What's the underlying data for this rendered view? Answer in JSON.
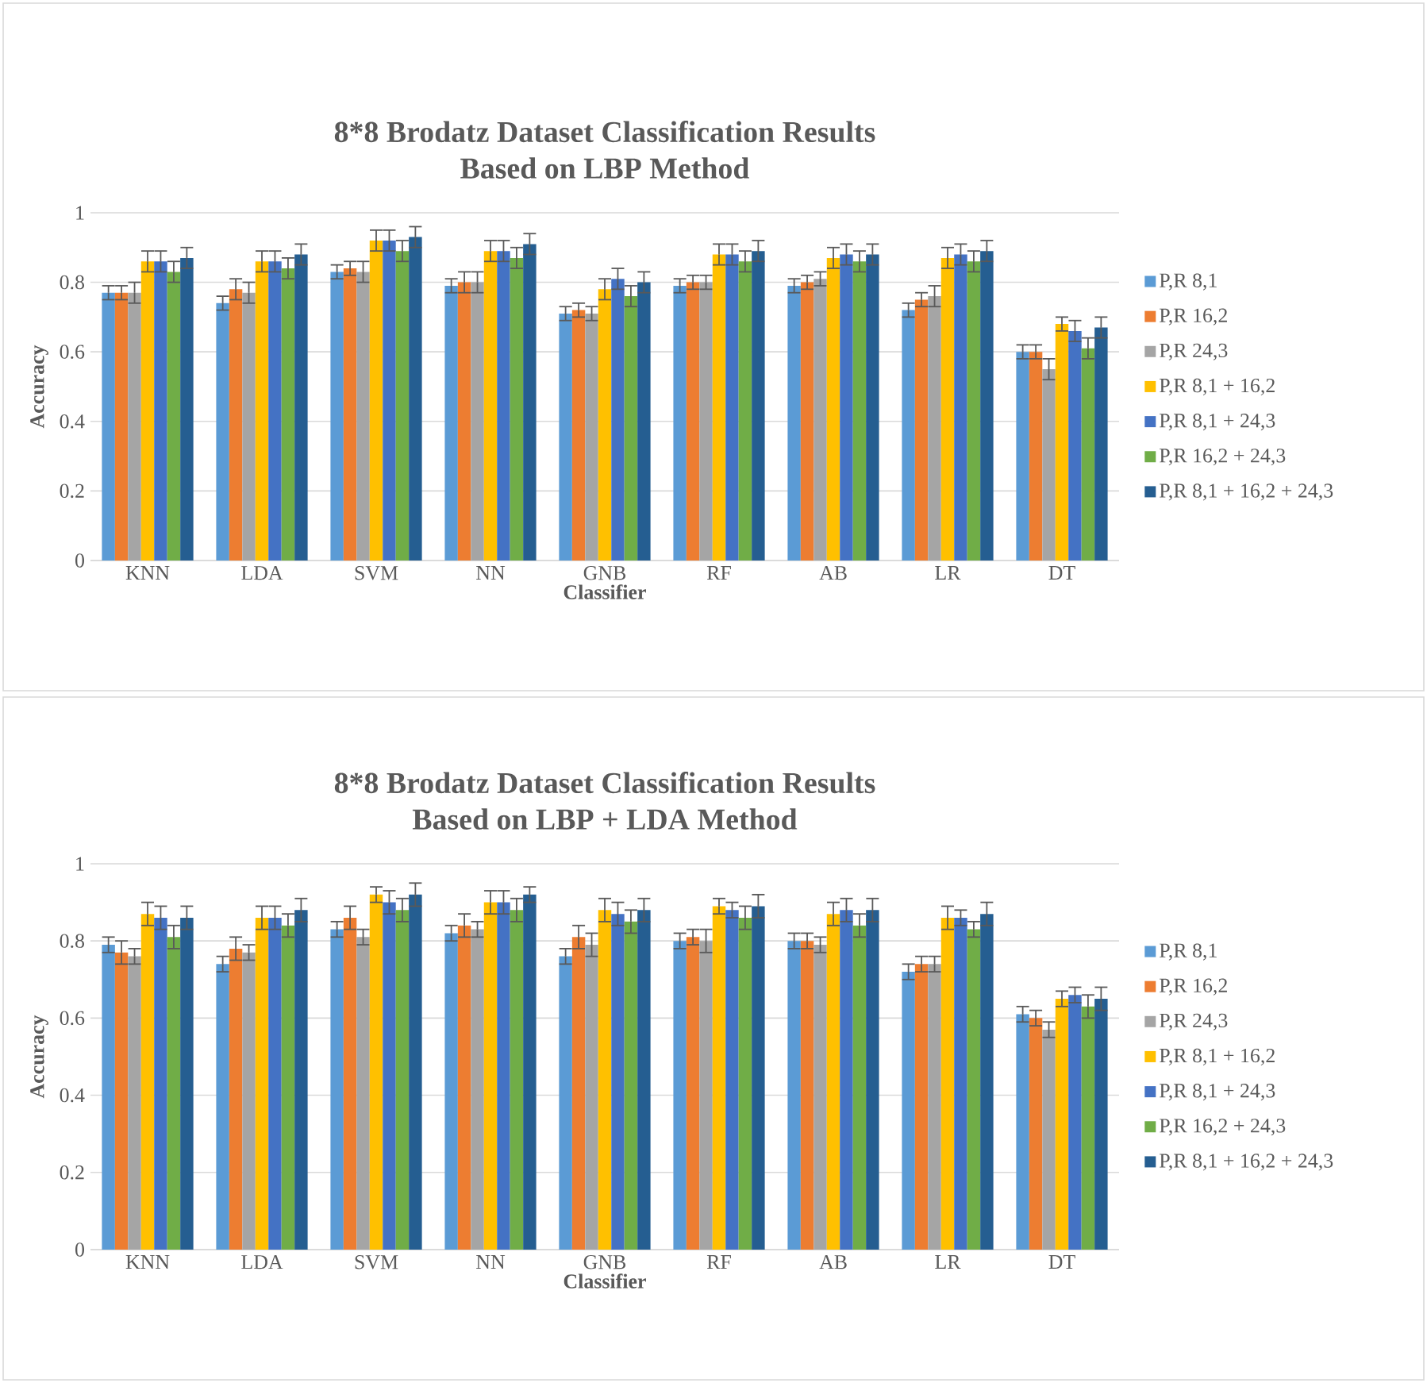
{
  "chart_data": [
    {
      "type": "bar",
      "title": "8*8 Brodatz Dataset Classification Results\nBased on LBP Method",
      "xlabel": "Classifier",
      "ylabel": "Accuracy",
      "categories": [
        "KNN",
        "LDA",
        "SVM",
        "NN",
        "GNB",
        "RF",
        "AB",
        "LR",
        "DT"
      ],
      "ylim": [
        0,
        1
      ],
      "yticks": [
        0,
        0.2,
        0.4,
        0.6,
        0.8,
        1
      ],
      "grid": "y",
      "legend": "right",
      "series": [
        {
          "name": "P,R 8,1",
          "color": "#5b9bd5",
          "values": [
            0.77,
            0.74,
            0.83,
            0.79,
            0.71,
            0.79,
            0.79,
            0.72,
            0.6
          ],
          "errors": [
            0.02,
            0.02,
            0.02,
            0.02,
            0.02,
            0.02,
            0.02,
            0.02,
            0.02
          ]
        },
        {
          "name": "P,R 16,2",
          "color": "#ed7d31",
          "values": [
            0.77,
            0.78,
            0.84,
            0.8,
            0.72,
            0.8,
            0.8,
            0.75,
            0.6
          ],
          "errors": [
            0.02,
            0.03,
            0.02,
            0.03,
            0.02,
            0.02,
            0.02,
            0.02,
            0.02
          ]
        },
        {
          "name": "P,R 24,3",
          "color": "#a5a5a5",
          "values": [
            0.77,
            0.77,
            0.83,
            0.8,
            0.71,
            0.8,
            0.81,
            0.76,
            0.55
          ],
          "errors": [
            0.03,
            0.03,
            0.03,
            0.03,
            0.02,
            0.02,
            0.02,
            0.03,
            0.03
          ]
        },
        {
          "name": "P,R 8,1 + 16,2",
          "color": "#ffc000",
          "values": [
            0.86,
            0.86,
            0.92,
            0.89,
            0.78,
            0.88,
            0.87,
            0.87,
            0.68
          ],
          "errors": [
            0.03,
            0.03,
            0.03,
            0.03,
            0.03,
            0.03,
            0.03,
            0.03,
            0.02
          ]
        },
        {
          "name": "P,R 8,1 + 24,3",
          "color": "#4472c4",
          "values": [
            0.86,
            0.86,
            0.92,
            0.89,
            0.81,
            0.88,
            0.88,
            0.88,
            0.66
          ],
          "errors": [
            0.03,
            0.03,
            0.03,
            0.03,
            0.03,
            0.03,
            0.03,
            0.03,
            0.03
          ]
        },
        {
          "name": "P,R 16,2 + 24,3",
          "color": "#70ad47",
          "values": [
            0.83,
            0.84,
            0.89,
            0.87,
            0.76,
            0.86,
            0.86,
            0.86,
            0.61
          ],
          "errors": [
            0.03,
            0.03,
            0.03,
            0.03,
            0.03,
            0.03,
            0.03,
            0.03,
            0.03
          ]
        },
        {
          "name": "P,R 8,1 + 16,2 + 24,3",
          "color": "#255e91",
          "values": [
            0.87,
            0.88,
            0.93,
            0.91,
            0.8,
            0.89,
            0.88,
            0.89,
            0.67
          ],
          "errors": [
            0.03,
            0.03,
            0.03,
            0.03,
            0.03,
            0.03,
            0.03,
            0.03,
            0.03
          ]
        }
      ]
    },
    {
      "type": "bar",
      "title": "8*8 Brodatz Dataset Classification Results\nBased on LBP + LDA Method",
      "xlabel": "Classifier",
      "ylabel": "Accuracy",
      "categories": [
        "KNN",
        "LDA",
        "SVM",
        "NN",
        "GNB",
        "RF",
        "AB",
        "LR",
        "DT"
      ],
      "ylim": [
        0,
        1
      ],
      "yticks": [
        0,
        0.2,
        0.4,
        0.6,
        0.8,
        1
      ],
      "grid": "y",
      "legend": "right",
      "series": [
        {
          "name": "P,R 8,1",
          "color": "#5b9bd5",
          "values": [
            0.79,
            0.74,
            0.83,
            0.82,
            0.76,
            0.8,
            0.8,
            0.72,
            0.61
          ],
          "errors": [
            0.02,
            0.02,
            0.02,
            0.02,
            0.02,
            0.02,
            0.02,
            0.02,
            0.02
          ]
        },
        {
          "name": "P,R 16,2",
          "color": "#ed7d31",
          "values": [
            0.77,
            0.78,
            0.86,
            0.84,
            0.81,
            0.81,
            0.8,
            0.74,
            0.6
          ],
          "errors": [
            0.03,
            0.03,
            0.03,
            0.03,
            0.03,
            0.02,
            0.02,
            0.02,
            0.02
          ]
        },
        {
          "name": "P,R 24,3",
          "color": "#a5a5a5",
          "values": [
            0.76,
            0.77,
            0.81,
            0.83,
            0.79,
            0.8,
            0.79,
            0.74,
            0.57
          ],
          "errors": [
            0.02,
            0.02,
            0.02,
            0.02,
            0.03,
            0.03,
            0.02,
            0.02,
            0.02
          ]
        },
        {
          "name": "P,R 8,1 + 16,2",
          "color": "#ffc000",
          "values": [
            0.87,
            0.86,
            0.92,
            0.9,
            0.88,
            0.89,
            0.87,
            0.86,
            0.65
          ],
          "errors": [
            0.03,
            0.03,
            0.02,
            0.03,
            0.03,
            0.02,
            0.03,
            0.03,
            0.02
          ]
        },
        {
          "name": "P,R 8,1 + 24,3",
          "color": "#4472c4",
          "values": [
            0.86,
            0.86,
            0.9,
            0.9,
            0.87,
            0.88,
            0.88,
            0.86,
            0.66
          ],
          "errors": [
            0.03,
            0.03,
            0.03,
            0.03,
            0.03,
            0.02,
            0.03,
            0.02,
            0.02
          ]
        },
        {
          "name": "P,R 16,2 + 24,3",
          "color": "#70ad47",
          "values": [
            0.81,
            0.84,
            0.88,
            0.88,
            0.85,
            0.86,
            0.84,
            0.83,
            0.63
          ],
          "errors": [
            0.03,
            0.03,
            0.03,
            0.03,
            0.03,
            0.03,
            0.03,
            0.02,
            0.03
          ]
        },
        {
          "name": "P,R 8,1 + 16,2 + 24,3",
          "color": "#255e91",
          "values": [
            0.86,
            0.88,
            0.92,
            0.92,
            0.88,
            0.89,
            0.88,
            0.87,
            0.65
          ],
          "errors": [
            0.03,
            0.03,
            0.03,
            0.02,
            0.03,
            0.03,
            0.03,
            0.03,
            0.03
          ]
        }
      ]
    }
  ]
}
